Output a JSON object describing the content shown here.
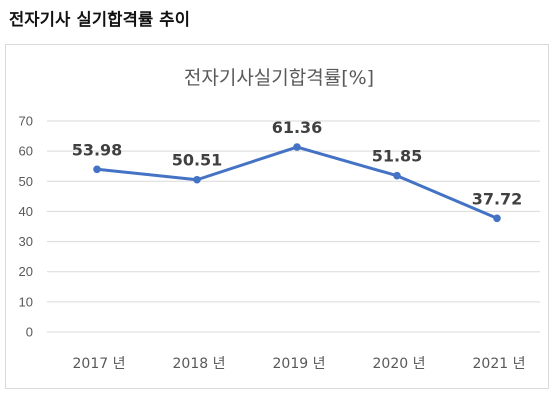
{
  "page_title": "전자기사 실기합격률 추이",
  "chart_data": {
    "type": "line",
    "title": "전자기사실기합격률[%]",
    "xlabel": "",
    "ylabel": "",
    "categories": [
      "2017 년",
      "2018 년",
      "2019 년",
      "2020 년",
      "2021 년"
    ],
    "series": [
      {
        "values": [
          53.98,
          50.51,
          61.36,
          51.85,
          37.72
        ],
        "color": "#4472c4"
      }
    ],
    "data_labels": [
      "53.98",
      "50.51",
      "61.36",
      "51.85",
      "37.72"
    ],
    "yticks": [
      0,
      10,
      20,
      30,
      40,
      50,
      60,
      70
    ],
    "ylim": [
      0,
      70
    ],
    "grid": "horizontal",
    "gridline_color": "#d9d9d9",
    "legend": "none"
  }
}
